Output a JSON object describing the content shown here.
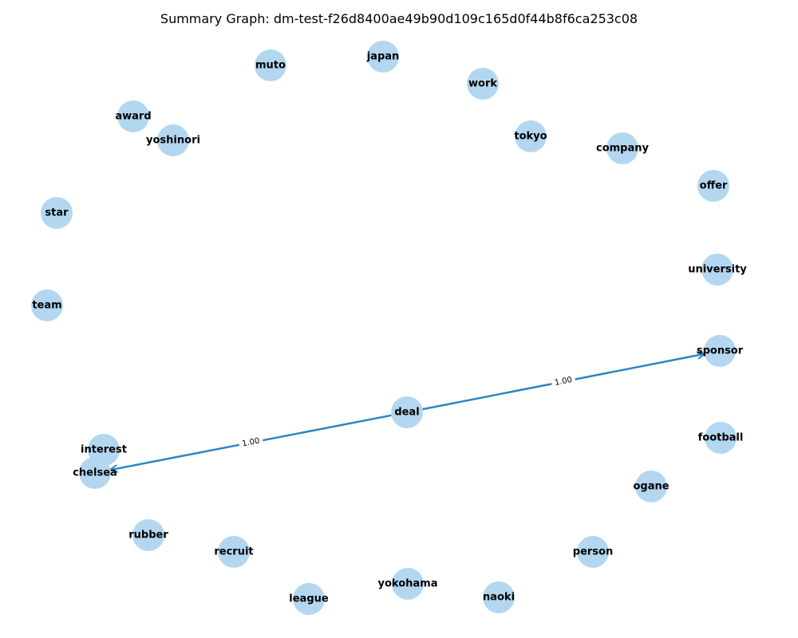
{
  "title": "Summary Graph: dm-test-f26d8400ae49b90d109c165d0f44b8f6ca253c08",
  "colors": {
    "node": "#b3d7f1",
    "edge": "#2e86c1",
    "label": "#000000"
  },
  "nodes": [
    {
      "id": "muto",
      "label": "muto"
    },
    {
      "id": "japan",
      "label": "japan"
    },
    {
      "id": "work",
      "label": "work"
    },
    {
      "id": "award",
      "label": "award"
    },
    {
      "id": "yoshinori",
      "label": "yoshinori"
    },
    {
      "id": "tokyo",
      "label": "tokyo"
    },
    {
      "id": "company",
      "label": "company"
    },
    {
      "id": "offer",
      "label": "offer"
    },
    {
      "id": "star",
      "label": "star"
    },
    {
      "id": "university",
      "label": "university"
    },
    {
      "id": "team",
      "label": "team"
    },
    {
      "id": "sponsor",
      "label": "sponsor"
    },
    {
      "id": "deal",
      "label": "deal"
    },
    {
      "id": "football",
      "label": "football"
    },
    {
      "id": "interest",
      "label": "interest"
    },
    {
      "id": "chelsea",
      "label": "chelsea"
    },
    {
      "id": "ogane",
      "label": "ogane"
    },
    {
      "id": "rubber",
      "label": "rubber"
    },
    {
      "id": "recruit",
      "label": "recruit"
    },
    {
      "id": "person",
      "label": "person"
    },
    {
      "id": "yokohama",
      "label": "yokohama"
    },
    {
      "id": "naoki",
      "label": "naoki"
    },
    {
      "id": "league",
      "label": "league"
    }
  ],
  "edges": [
    {
      "source": "deal",
      "target": "sponsor",
      "weight": "1.00"
    },
    {
      "source": "deal",
      "target": "chelsea",
      "weight": "1.00"
    }
  ]
}
